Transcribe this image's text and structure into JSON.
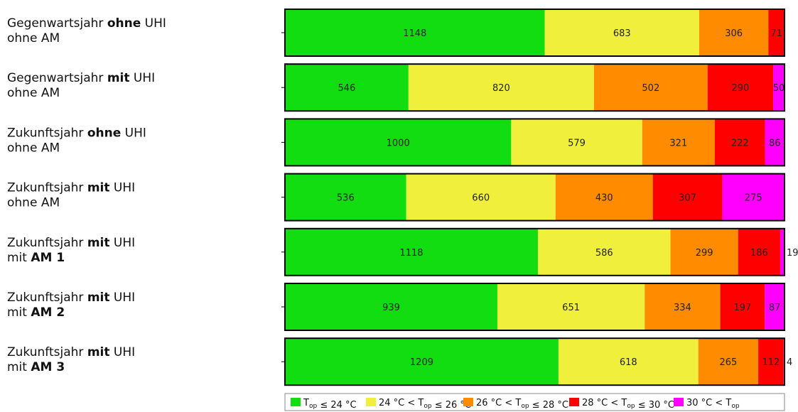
{
  "chart_data": {
    "type": "bar",
    "stacked": true,
    "orientation": "horizontal",
    "normalized": true,
    "categories": [
      {
        "lines": [
          [
            {
              "t": "Gegenwartsjahr "
            },
            {
              "t": "ohne",
              "b": true
            },
            {
              "t": " UHI"
            }
          ],
          [
            {
              "t": "ohne AM"
            }
          ]
        ]
      },
      {
        "lines": [
          [
            {
              "t": "Gegenwartsjahr "
            },
            {
              "t": "mit",
              "b": true
            },
            {
              "t": " UHI"
            }
          ],
          [
            {
              "t": "ohne AM"
            }
          ]
        ]
      },
      {
        "lines": [
          [
            {
              "t": "Zukunftsjahr "
            },
            {
              "t": "ohne",
              "b": true
            },
            {
              "t": " UHI"
            }
          ],
          [
            {
              "t": "ohne AM"
            }
          ]
        ]
      },
      {
        "lines": [
          [
            {
              "t": "Zukunftsjahr "
            },
            {
              "t": "mit",
              "b": true
            },
            {
              "t": " UHI"
            }
          ],
          [
            {
              "t": "ohne AM"
            }
          ]
        ]
      },
      {
        "lines": [
          [
            {
              "t": "Zukunftsjahr "
            },
            {
              "t": "mit",
              "b": true
            },
            {
              "t": " UHI"
            }
          ],
          [
            {
              "t": "mit "
            },
            {
              "t": "AM 1",
              "b": true
            }
          ]
        ]
      },
      {
        "lines": [
          [
            {
              "t": "Zukunftsjahr "
            },
            {
              "t": "mit",
              "b": true
            },
            {
              "t": " UHI"
            }
          ],
          [
            {
              "t": "mit "
            },
            {
              "t": "AM 2",
              "b": true
            }
          ]
        ]
      },
      {
        "lines": [
          [
            {
              "t": "Zukunftsjahr "
            },
            {
              "t": "mit",
              "b": true
            },
            {
              "t": " UHI"
            }
          ],
          [
            {
              "t": "mit "
            },
            {
              "t": "AM 3",
              "b": true
            }
          ]
        ]
      }
    ],
    "series": [
      {
        "name": "T_op ≤ 24 °C",
        "color": "#11dd11",
        "values": [
          1148,
          546,
          1000,
          536,
          1118,
          939,
          1209
        ]
      },
      {
        "name": "24 °C < T_op ≤ 26 °C",
        "color": "#f0f03c",
        "values": [
          683,
          820,
          579,
          660,
          586,
          651,
          618
        ]
      },
      {
        "name": "26 °C < T_op ≤ 28 °C",
        "color": "#ff8c00",
        "values": [
          306,
          502,
          321,
          430,
          299,
          334,
          265
        ]
      },
      {
        "name": "28 °C < T_op ≤ 30 °C",
        "color": "#ff0000",
        "values": [
          71,
          290,
          222,
          307,
          186,
          197,
          112
        ]
      },
      {
        "name": "30 °C < T_op",
        "color": "#ff00ff",
        "values": [
          0,
          50,
          86,
          275,
          19,
          87,
          4
        ]
      }
    ],
    "legend": {
      "position": "bottom",
      "items": [
        [
          {
            "t": "T"
          },
          {
            "t": "op",
            "sub": true
          },
          {
            "t": " ≤ 24 °C"
          }
        ],
        [
          {
            "t": "24 °C < T"
          },
          {
            "t": "op",
            "sub": true
          },
          {
            "t": " ≤ 26 °C"
          }
        ],
        [
          {
            "t": "26 °C < T"
          },
          {
            "t": "op",
            "sub": true
          },
          {
            "t": " ≤ 28 °C"
          }
        ],
        [
          {
            "t": "28 °C < T"
          },
          {
            "t": "op",
            "sub": true
          },
          {
            "t": " ≤ 30 °C"
          }
        ],
        [
          {
            "t": "30 °C < T"
          },
          {
            "t": "op",
            "sub": true
          }
        ]
      ]
    },
    "outside_labels": [
      {
        "row": 4,
        "series": 4,
        "text": "19"
      },
      {
        "row": 6,
        "series": 4,
        "text": "4"
      }
    ],
    "xlabel": "",
    "ylabel": "",
    "grid": false
  }
}
